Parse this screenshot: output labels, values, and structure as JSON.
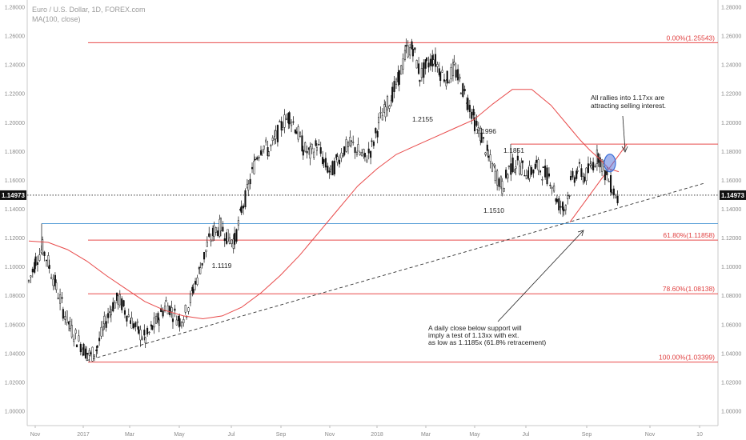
{
  "header": {
    "title": "Euro / U.S. Dollar, 1D, FOREX.com",
    "indicator": "MA(100, close)"
  },
  "chart_data": {
    "type": "candlestick",
    "title": "Euro / U.S. Dollar, 1D, FOREX.com",
    "ylim": [
      0.99,
      1.285
    ],
    "y_ticks": [
      "1.28000",
      "1.26000",
      "1.24000",
      "1.22000",
      "1.20000",
      "1.18000",
      "1.16000",
      "1.14000",
      "1.12000",
      "1.10000",
      "1.08000",
      "1.06000",
      "1.04000",
      "1.02000",
      "1.00000"
    ],
    "x_ticks": [
      "Nov",
      "2017",
      "Mar",
      "May",
      "Jul",
      "Sep",
      "Nov",
      "2018",
      "Mar",
      "May",
      "Jul",
      "Sep",
      "Nov",
      "10"
    ],
    "grid": false,
    "series": [
      {
        "name": "MA(100, close)",
        "color": "#e84a4a",
        "points": [
          [
            0,
            1.118
          ],
          [
            4,
            1.117
          ],
          [
            8,
            1.112
          ],
          [
            12,
            1.104
          ],
          [
            16,
            1.094
          ],
          [
            20,
            1.085
          ],
          [
            24,
            1.076
          ],
          [
            28,
            1.07
          ],
          [
            32,
            1.066
          ],
          [
            36,
            1.064
          ],
          [
            40,
            1.066
          ],
          [
            44,
            1.072
          ],
          [
            48,
            1.082
          ],
          [
            52,
            1.094
          ],
          [
            56,
            1.108
          ],
          [
            60,
            1.124
          ],
          [
            64,
            1.14
          ],
          [
            68,
            1.156
          ],
          [
            72,
            1.168
          ],
          [
            76,
            1.178
          ],
          [
            80,
            1.184
          ],
          [
            84,
            1.19
          ],
          [
            88,
            1.196
          ],
          [
            92,
            1.202
          ],
          [
            96,
            1.213
          ],
          [
            100,
            1.223
          ],
          [
            104,
            1.223
          ],
          [
            108,
            1.212
          ],
          [
            112,
            1.196
          ],
          [
            114,
            1.188
          ],
          [
            116,
            1.181
          ],
          [
            118,
            1.175
          ],
          [
            120,
            1.168
          ],
          [
            122,
            1.166
          ]
        ]
      }
    ],
    "price_path": [
      [
        0,
        1.09
      ],
      [
        1,
        1.105
      ],
      [
        2,
        1.113
      ],
      [
        3,
        1.1
      ],
      [
        4,
        1.085
      ],
      [
        5,
        1.07
      ],
      [
        6,
        1.058
      ],
      [
        7,
        1.05
      ],
      [
        8,
        1.043
      ],
      [
        9,
        1.038
      ],
      [
        10,
        1.045
      ],
      [
        11,
        1.06
      ],
      [
        12,
        1.072
      ],
      [
        13,
        1.078
      ],
      [
        14,
        1.07
      ],
      [
        15,
        1.062
      ],
      [
        16,
        1.055
      ],
      [
        17,
        1.05
      ],
      [
        18,
        1.058
      ],
      [
        19,
        1.065
      ],
      [
        20,
        1.075
      ],
      [
        21,
        1.068
      ],
      [
        22,
        1.063
      ],
      [
        23,
        1.07
      ],
      [
        24,
        1.085
      ],
      [
        25,
        1.1
      ],
      [
        26,
        1.115
      ],
      [
        27,
        1.125
      ],
      [
        28,
        1.128
      ],
      [
        29,
        1.12
      ],
      [
        30,
        1.118
      ],
      [
        31,
        1.14
      ],
      [
        32,
        1.155
      ],
      [
        33,
        1.175
      ],
      [
        34,
        1.185
      ],
      [
        35,
        1.18
      ],
      [
        36,
        1.19
      ],
      [
        37,
        1.2
      ],
      [
        38,
        1.205
      ],
      [
        39,
        1.195
      ],
      [
        40,
        1.182
      ],
      [
        41,
        1.178
      ],
      [
        42,
        1.185
      ],
      [
        43,
        1.172
      ],
      [
        44,
        1.165
      ],
      [
        45,
        1.175
      ],
      [
        46,
        1.182
      ],
      [
        47,
        1.185
      ],
      [
        48,
        1.18
      ],
      [
        49,
        1.175
      ],
      [
        50,
        1.183
      ],
      [
        51,
        1.2
      ],
      [
        52,
        1.21
      ],
      [
        53,
        1.22
      ],
      [
        54,
        1.232
      ],
      [
        55,
        1.25
      ],
      [
        56,
        1.252
      ],
      [
        57,
        1.232
      ],
      [
        58,
        1.24
      ],
      [
        59,
        1.245
      ],
      [
        60,
        1.235
      ],
      [
        61,
        1.23
      ],
      [
        62,
        1.238
      ],
      [
        63,
        1.225
      ],
      [
        64,
        1.215
      ],
      [
        65,
        1.2
      ],
      [
        66,
        1.19
      ],
      [
        67,
        1.175
      ],
      [
        68,
        1.165
      ],
      [
        69,
        1.155
      ],
      [
        70,
        1.168
      ],
      [
        71,
        1.172
      ],
      [
        72,
        1.168
      ],
      [
        73,
        1.165
      ],
      [
        74,
        1.17
      ],
      [
        75,
        1.165
      ],
      [
        76,
        1.162
      ],
      [
        77,
        1.145
      ],
      [
        78,
        1.14
      ],
      [
        79,
        1.158
      ],
      [
        80,
        1.168
      ],
      [
        81,
        1.162
      ],
      [
        82,
        1.17
      ],
      [
        83,
        1.178
      ],
      [
        84,
        1.165
      ],
      [
        85,
        1.155
      ],
      [
        86,
        1.145
      ]
    ],
    "levels": [
      {
        "label": "0.00%(1.25543)",
        "value": 1.25543,
        "color": "#e84a4a"
      },
      {
        "label": "61.80%(1.11858)",
        "value": 1.11858,
        "color": "#e84a4a"
      },
      {
        "label": "78.60%(1.08138)",
        "value": 1.08138,
        "color": "#e84a4a"
      },
      {
        "label": "100.00%(1.03399)",
        "value": 1.03399,
        "color": "#e84a4a"
      }
    ],
    "support_line_blue": 1.13,
    "resistance_line": 1.1851,
    "current_price": {
      "label": "1.14973",
      "value": 1.14973
    },
    "price_labels": [
      {
        "text": "1.2155",
        "x": 62,
        "y": 1.2155
      },
      {
        "text": "1.1996",
        "x": 70,
        "y": 1.1996
      },
      {
        "text": "1.1851",
        "x": 74,
        "y": 1.1851
      },
      {
        "text": "1.1510",
        "x": 71,
        "y": 1.151
      },
      {
        "text": "1.1119",
        "x": 31,
        "y": 1.1119
      }
    ],
    "annotations": [
      {
        "lines": [
          "All rallies into 1.17xx are",
          "attracting selling interest."
        ]
      },
      {
        "lines": [
          "A daily close below support will",
          "imply a test of 1.13xx with ext.",
          "as low as 1.1185x (61.8% retracement)"
        ]
      }
    ]
  },
  "colors": {
    "candle": "#111111",
    "ma": "#e84a4a",
    "fib": "#e84a4a",
    "support_blue": "#5aa0d8",
    "ellipse": "#3a6fd8",
    "price_badge": "#111111"
  }
}
